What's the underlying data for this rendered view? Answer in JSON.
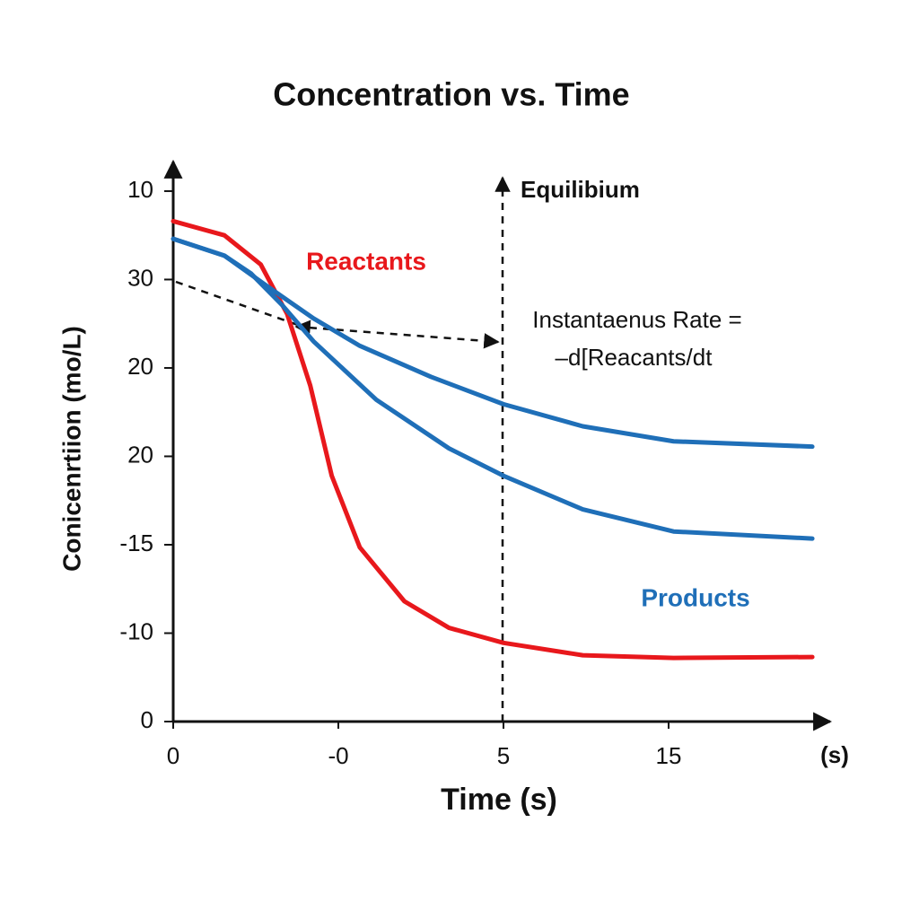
{
  "chart_data": {
    "type": "line",
    "title": "Concentration vs. Time",
    "x_label": "Time (s)",
    "x_unit": "(s)",
    "y_label": "Conicenrtiion (mo/L)",
    "annotations": [
      "Equilibium",
      "Instantaenus Rate =",
      "–d[Reacants/dt"
    ],
    "xlim": [
      0,
      4
    ],
    "ylim": [
      0,
      6.3
    ],
    "xticks": [
      0,
      {
        "value": 1,
        "label": "-0"
      },
      {
        "value": 2,
        "label": "5"
      },
      {
        "value": 3,
        "label": "15"
      }
    ],
    "yticks": [
      {
        "value": 6,
        "label": "10"
      },
      {
        "value": 5,
        "label": "30"
      },
      {
        "value": 4,
        "label": "20"
      },
      {
        "value": 3,
        "label": "20"
      },
      {
        "value": 2,
        "label": "-15"
      },
      {
        "value": 1,
        "label": "-10"
      },
      0
    ],
    "series": [
      {
        "name": "Reactants",
        "color": "#e8181c",
        "x": [
          0,
          0.31,
          0.53,
          0.69,
          0.83,
          0.96,
          1.13,
          1.4,
          1.67,
          2.0,
          2.48,
          3.03,
          3.87
        ],
        "values": [
          5.66,
          5.5,
          5.17,
          4.61,
          3.8,
          2.78,
          1.97,
          1.36,
          1.06,
          0.89,
          0.75,
          0.72,
          0.73
        ]
      },
      {
        "name": "Products",
        "color": "#1f6fb8",
        "x": [
          0,
          0.31,
          0.58,
          0.85,
          1.13,
          1.56,
          2.0,
          2.48,
          3.03,
          3.87
        ],
        "values": [
          5.46,
          5.27,
          4.91,
          4.56,
          4.25,
          3.9,
          3.59,
          3.34,
          3.17,
          3.11
        ]
      },
      {
        "color": "#1f6fb8",
        "x": [
          0,
          0.31,
          0.47,
          0.66,
          0.85,
          1.23,
          1.67,
          2.0,
          2.48,
          3.03,
          3.87
        ],
        "values": [
          5.46,
          5.27,
          5.07,
          4.71,
          4.3,
          3.64,
          3.09,
          2.78,
          2.4,
          2.15,
          2.07
        ]
      }
    ]
  }
}
